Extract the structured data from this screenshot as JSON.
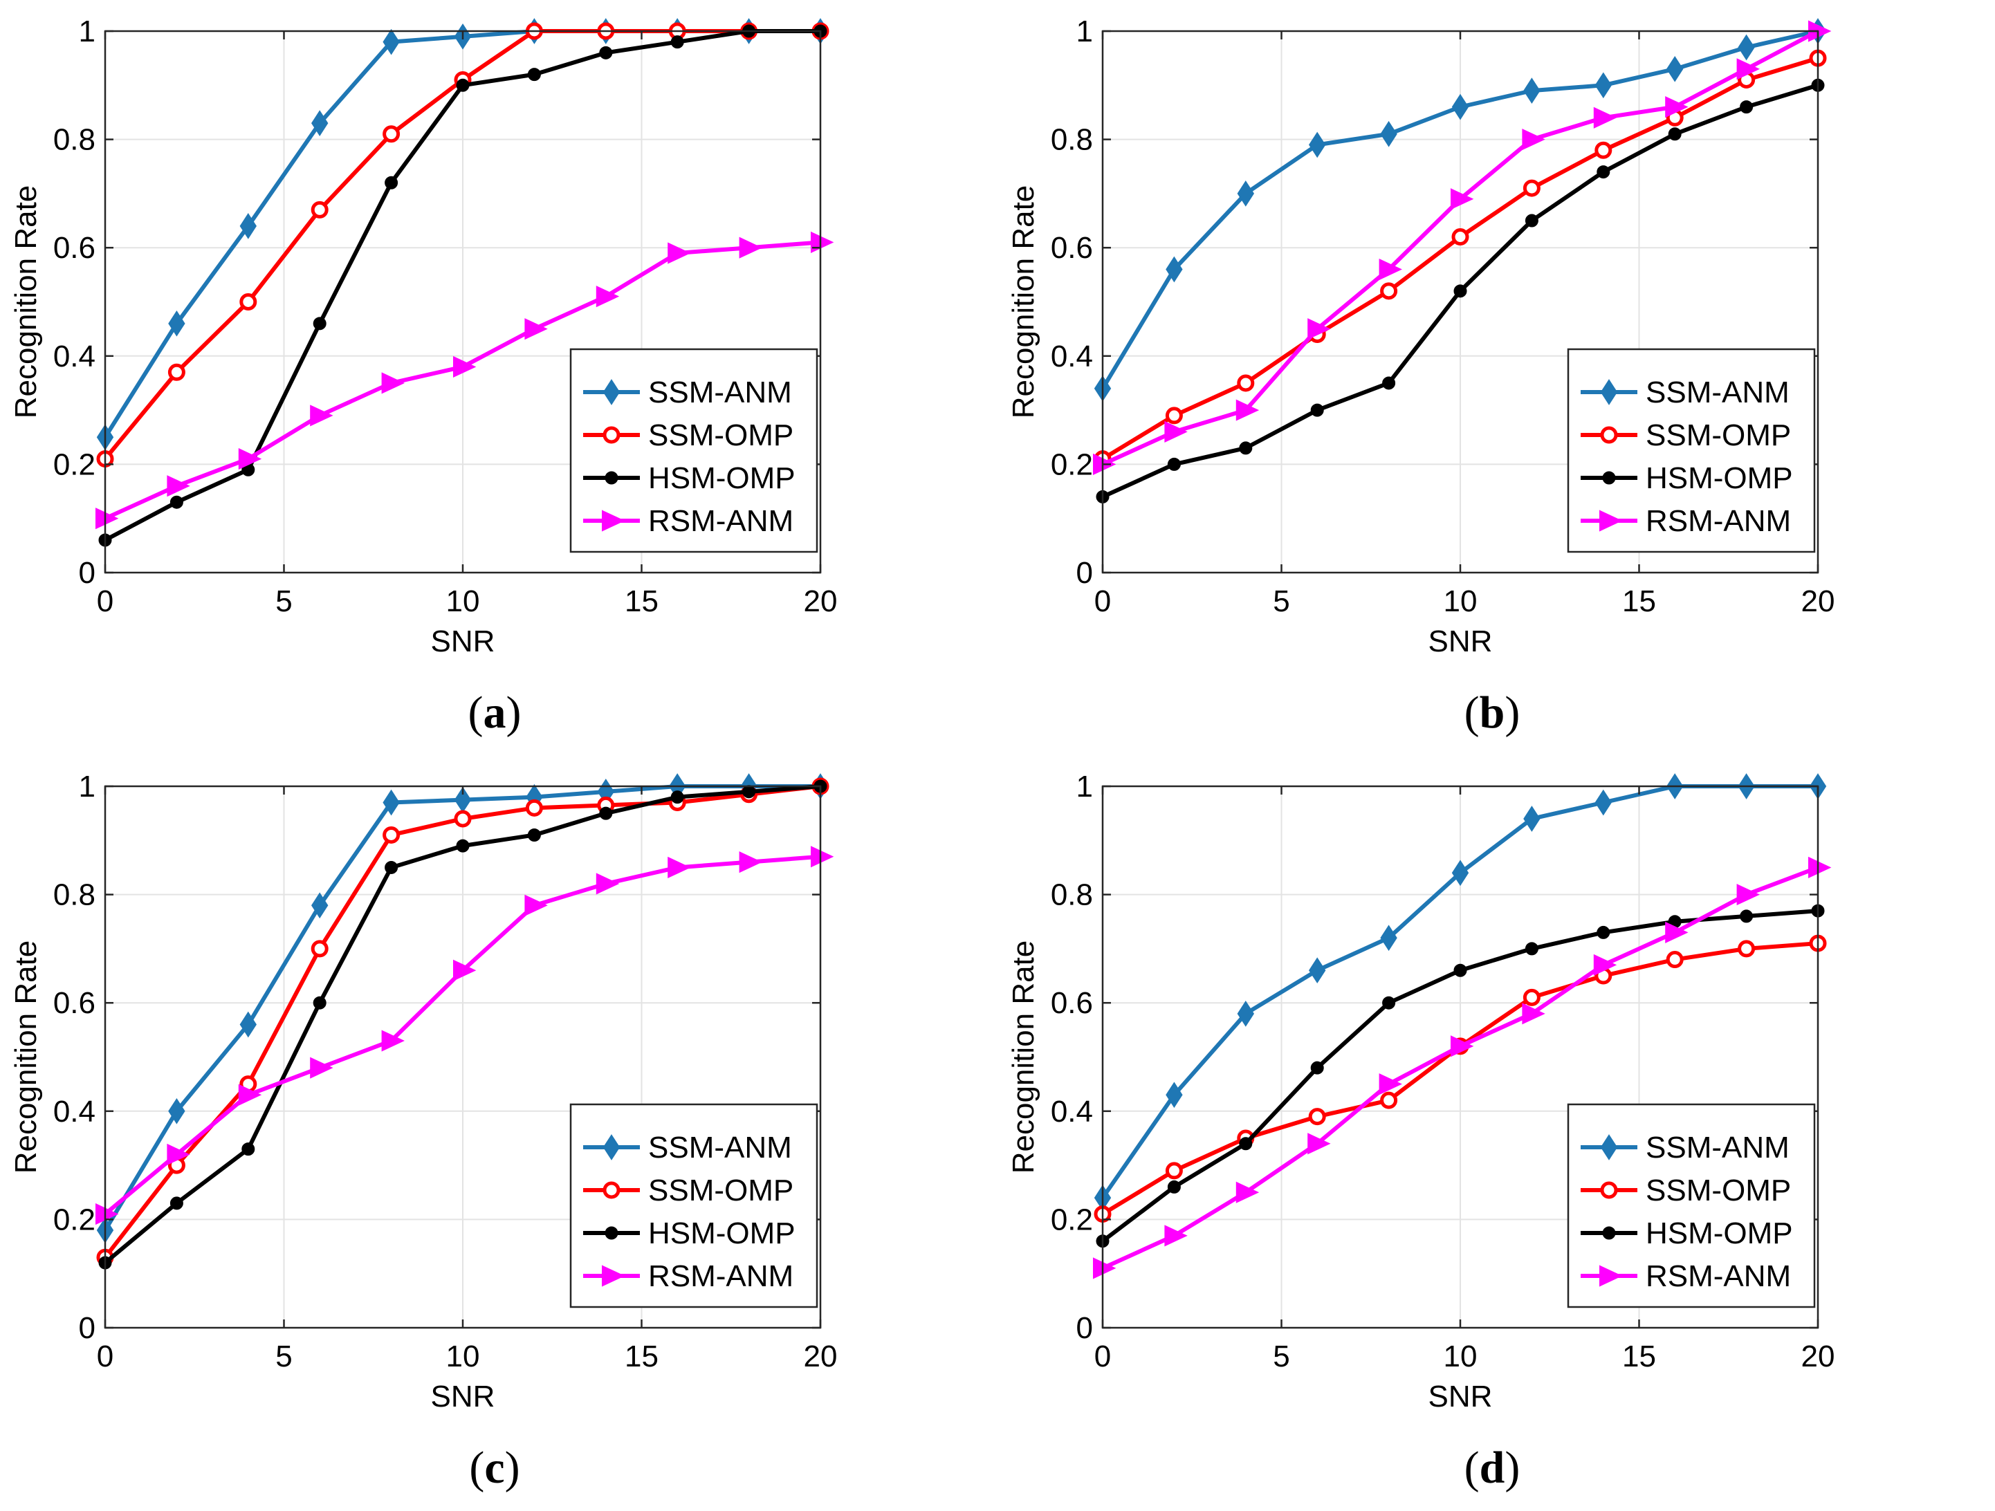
{
  "chart_data": [
    {
      "type": "line",
      "panel": "a",
      "caption": {
        "open": "(",
        "letter": "a",
        "close": ")"
      },
      "xlabel": "SNR",
      "ylabel": "Recognition Rate",
      "xlim": [
        0,
        20
      ],
      "ylim": [
        0,
        1
      ],
      "xticks": [
        "0",
        "5",
        "10",
        "15",
        "20"
      ],
      "yticks": [
        "0",
        "0.2",
        "0.4",
        "0.6",
        "0.8",
        "1"
      ],
      "grid": true,
      "legend_position": "bottom-right",
      "x": [
        0,
        2,
        4,
        6,
        8,
        10,
        12,
        14,
        16,
        18,
        20
      ],
      "series": [
        {
          "name": "SSM-ANM",
          "color": "#1f77b4",
          "marker": "diamond",
          "values": [
            0.25,
            0.46,
            0.64,
            0.83,
            0.98,
            0.99,
            1.0,
            1.0,
            1.0,
            1.0,
            1.0
          ]
        },
        {
          "name": "SSM-OMP",
          "color": "#ff0000",
          "marker": "circle-open",
          "values": [
            0.21,
            0.37,
            0.5,
            0.67,
            0.81,
            0.91,
            1.0,
            1.0,
            1.0,
            1.0,
            1.0
          ]
        },
        {
          "name": "HSM-OMP",
          "color": "#000000",
          "marker": "dot",
          "values": [
            0.06,
            0.13,
            0.19,
            0.46,
            0.72,
            0.9,
            0.92,
            0.96,
            0.98,
            1.0,
            1.0
          ]
        },
        {
          "name": "RSM-ANM",
          "color": "#ff00ff",
          "marker": "triangle-right",
          "values": [
            0.1,
            0.16,
            0.21,
            0.29,
            0.35,
            0.38,
            0.45,
            0.51,
            0.59,
            0.6,
            0.61
          ]
        }
      ]
    },
    {
      "type": "line",
      "panel": "b",
      "caption": {
        "open": "(",
        "letter": "b",
        "close": ")"
      },
      "xlabel": "SNR",
      "ylabel": "Recognition Rate",
      "xlim": [
        0,
        20
      ],
      "ylim": [
        0,
        1
      ],
      "xticks": [
        "0",
        "5",
        "10",
        "15",
        "20"
      ],
      "yticks": [
        "0",
        "0.2",
        "0.4",
        "0.6",
        "0.8",
        "1"
      ],
      "grid": true,
      "legend_position": "bottom-right",
      "x": [
        0,
        2,
        4,
        6,
        8,
        10,
        12,
        14,
        16,
        18,
        20
      ],
      "series": [
        {
          "name": "SSM-ANM",
          "color": "#1f77b4",
          "marker": "diamond",
          "values": [
            0.34,
            0.56,
            0.7,
            0.79,
            0.81,
            0.86,
            0.89,
            0.9,
            0.93,
            0.97,
            1.0
          ]
        },
        {
          "name": "SSM-OMP",
          "color": "#ff0000",
          "marker": "circle-open",
          "values": [
            0.21,
            0.29,
            0.35,
            0.44,
            0.52,
            0.62,
            0.71,
            0.78,
            0.84,
            0.91,
            0.95
          ]
        },
        {
          "name": "HSM-OMP",
          "color": "#000000",
          "marker": "dot",
          "values": [
            0.14,
            0.2,
            0.23,
            0.3,
            0.35,
            0.52,
            0.65,
            0.74,
            0.81,
            0.86,
            0.9
          ]
        },
        {
          "name": "RSM-ANM",
          "color": "#ff00ff",
          "marker": "triangle-right",
          "values": [
            0.2,
            0.26,
            0.3,
            0.45,
            0.56,
            0.69,
            0.8,
            0.84,
            0.86,
            0.93,
            1.0
          ]
        }
      ]
    },
    {
      "type": "line",
      "panel": "c",
      "caption": {
        "open": "(",
        "letter": "c",
        "close": ")"
      },
      "xlabel": "SNR",
      "ylabel": "Recognition Rate",
      "xlim": [
        0,
        20
      ],
      "ylim": [
        0,
        1
      ],
      "xticks": [
        "0",
        "5",
        "10",
        "15",
        "20"
      ],
      "yticks": [
        "0",
        "0.2",
        "0.4",
        "0.6",
        "0.8",
        "1"
      ],
      "grid": true,
      "legend_position": "bottom-right",
      "x": [
        0,
        2,
        4,
        6,
        8,
        10,
        12,
        14,
        16,
        18,
        20
      ],
      "series": [
        {
          "name": "SSM-ANM",
          "color": "#1f77b4",
          "marker": "diamond",
          "values": [
            0.18,
            0.4,
            0.56,
            0.78,
            0.97,
            0.975,
            0.98,
            0.99,
            1.0,
            1.0,
            1.0
          ]
        },
        {
          "name": "SSM-OMP",
          "color": "#ff0000",
          "marker": "circle-open",
          "values": [
            0.13,
            0.3,
            0.45,
            0.7,
            0.91,
            0.94,
            0.96,
            0.965,
            0.97,
            0.985,
            1.0
          ]
        },
        {
          "name": "HSM-OMP",
          "color": "#000000",
          "marker": "dot",
          "values": [
            0.12,
            0.23,
            0.33,
            0.6,
            0.85,
            0.89,
            0.91,
            0.95,
            0.98,
            0.99,
            1.0
          ]
        },
        {
          "name": "RSM-ANM",
          "color": "#ff00ff",
          "marker": "triangle-right",
          "values": [
            0.21,
            0.32,
            0.43,
            0.48,
            0.53,
            0.66,
            0.78,
            0.82,
            0.85,
            0.86,
            0.87
          ]
        }
      ]
    },
    {
      "type": "line",
      "panel": "d",
      "caption": {
        "open": "(",
        "letter": "d",
        "close": ")"
      },
      "xlabel": "SNR",
      "ylabel": "Recognition Rate",
      "xlim": [
        0,
        20
      ],
      "ylim": [
        0,
        1
      ],
      "xticks": [
        "0",
        "5",
        "10",
        "15",
        "20"
      ],
      "yticks": [
        "0",
        "0.2",
        "0.4",
        "0.6",
        "0.8",
        "1"
      ],
      "grid": true,
      "legend_position": "bottom-right",
      "x": [
        0,
        2,
        4,
        6,
        8,
        10,
        12,
        14,
        16,
        18,
        20
      ],
      "series": [
        {
          "name": "SSM-ANM",
          "color": "#1f77b4",
          "marker": "diamond",
          "values": [
            0.24,
            0.43,
            0.58,
            0.66,
            0.72,
            0.84,
            0.94,
            0.97,
            1.0,
            1.0,
            1.0
          ]
        },
        {
          "name": "SSM-OMP",
          "color": "#ff0000",
          "marker": "circle-open",
          "values": [
            0.21,
            0.29,
            0.35,
            0.39,
            0.42,
            0.52,
            0.61,
            0.65,
            0.68,
            0.7,
            0.71
          ]
        },
        {
          "name": "HSM-OMP",
          "color": "#000000",
          "marker": "dot",
          "values": [
            0.16,
            0.26,
            0.34,
            0.48,
            0.6,
            0.66,
            0.7,
            0.73,
            0.75,
            0.76,
            0.77
          ]
        },
        {
          "name": "RSM-ANM",
          "color": "#ff00ff",
          "marker": "triangle-right",
          "values": [
            0.11,
            0.17,
            0.25,
            0.34,
            0.45,
            0.52,
            0.58,
            0.67,
            0.73,
            0.8,
            0.85
          ]
        }
      ]
    }
  ]
}
